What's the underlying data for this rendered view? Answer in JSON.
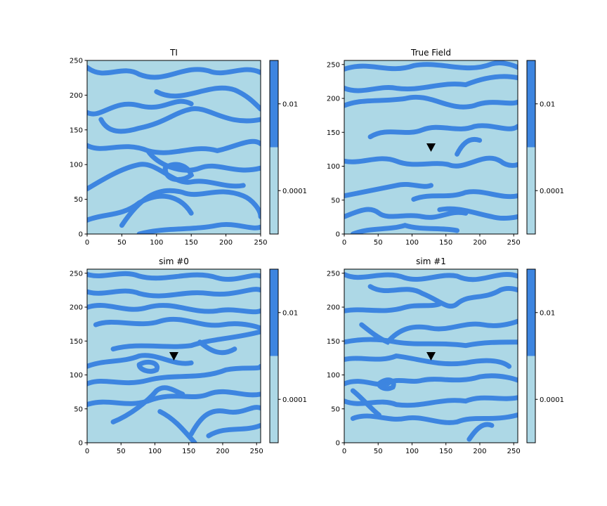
{
  "chart_data": [
    {
      "type": "heatmap",
      "title": "TI",
      "x_ticks": [
        0,
        50,
        100,
        150,
        200,
        250
      ],
      "y_ticks": [
        0,
        50,
        100,
        150,
        200,
        250
      ],
      "xlim": [
        0,
        250
      ],
      "ylim": [
        0,
        250
      ],
      "colorbar": {
        "ticks": [
          "0.01",
          "0.0001"
        ],
        "levels": [
          0.01,
          0.0001
        ]
      },
      "colors": {
        "channel": "#3d85e0",
        "background": "#add8e6"
      },
      "markers": []
    },
    {
      "type": "heatmap",
      "title": "True Field",
      "x_ticks": [
        0,
        50,
        100,
        150,
        200,
        250
      ],
      "y_ticks": [
        0,
        50,
        100,
        150,
        200,
        250
      ],
      "xlim": [
        0,
        256
      ],
      "ylim": [
        0,
        256
      ],
      "colorbar": {
        "ticks": [
          "0.01",
          "0.0001"
        ],
        "levels": [
          0.01,
          0.0001
        ]
      },
      "colors": {
        "channel": "#3d85e0",
        "background": "#add8e6"
      },
      "markers": [
        {
          "x": 128,
          "y": 128,
          "symbol": "triangle-down"
        }
      ]
    },
    {
      "type": "heatmap",
      "title": "sim #0",
      "x_ticks": [
        0,
        50,
        100,
        150,
        200,
        250
      ],
      "y_ticks": [
        0,
        50,
        100,
        150,
        200,
        250
      ],
      "xlim": [
        0,
        256
      ],
      "ylim": [
        0,
        256
      ],
      "colorbar": {
        "ticks": [
          "0.01",
          "0.0001"
        ],
        "levels": [
          0.01,
          0.0001
        ]
      },
      "colors": {
        "channel": "#3d85e0",
        "background": "#add8e6"
      },
      "markers": [
        {
          "x": 128,
          "y": 128,
          "symbol": "triangle-down"
        }
      ]
    },
    {
      "type": "heatmap",
      "title": "sim #1",
      "x_ticks": [
        0,
        50,
        100,
        150,
        200,
        250
      ],
      "y_ticks": [
        0,
        50,
        100,
        150,
        200,
        250
      ],
      "xlim": [
        0,
        256
      ],
      "ylim": [
        0,
        256
      ],
      "colorbar": {
        "ticks": [
          "0.01",
          "0.0001"
        ],
        "levels": [
          0.01,
          0.0001
        ]
      },
      "colors": {
        "channel": "#3d85e0",
        "background": "#add8e6"
      },
      "markers": [
        {
          "x": 128,
          "y": 128,
          "symbol": "triangle-down"
        }
      ]
    }
  ]
}
